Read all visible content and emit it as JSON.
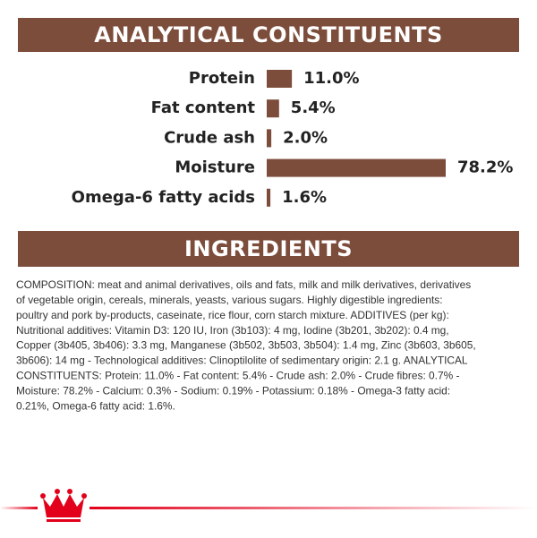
{
  "chart_data": {
    "type": "bar",
    "title": "ANALYTICAL CONSTITUENTS",
    "categories": [
      "Protein",
      "Fat content",
      "Crude ash",
      "Moisture",
      "Omega-6 fatty acids"
    ],
    "values": [
      11.0,
      5.4,
      2.0,
      78.2,
      1.6
    ],
    "value_labels": [
      "11.0%",
      "5.4%",
      "2.0%",
      "78.2%",
      "1.6%"
    ],
    "color": "#7d4d3c"
  },
  "ingredients": {
    "title": "INGREDIENTS",
    "lines": [
      "COMPOSITION: meat and animal derivatives, oils and fats, milk and milk derivatives, derivatives",
      "of vegetable origin, cereals, minerals, yeasts, various sugars. Highly digestible ingredients:",
      "poultry and pork by-products, caseinate, rice flour, corn starch mixture. ADDITIVES (per kg):",
      "Nutritional additives: Vitamin D3: 120 IU, Iron (3b103): 4 mg, Iodine (3b201, 3b202): 0.4 mg,",
      "Copper (3b405, 3b406): 3.3 mg, Manganese (3b502, 3b503, 3b504): 1.4 mg, Zinc (3b603, 3b605,",
      "3b606): 14 mg - Technological additives: Clinoptilolite of sedimentary origin: 2.1 g. ANALYTICAL",
      "CONSTITUENTS: Protein: 11.0% - Fat content: 5.4% - Crude ash: 2.0% - Crude fibres: 0.7% -",
      "Moisture: 78.2% - Calcium: 0.3% - Sodium: 0.19% - Potassium: 0.18% - Omega-3 fatty acid:",
      "0.21%, Omega-6 fatty acid: 1.6%."
    ]
  }
}
